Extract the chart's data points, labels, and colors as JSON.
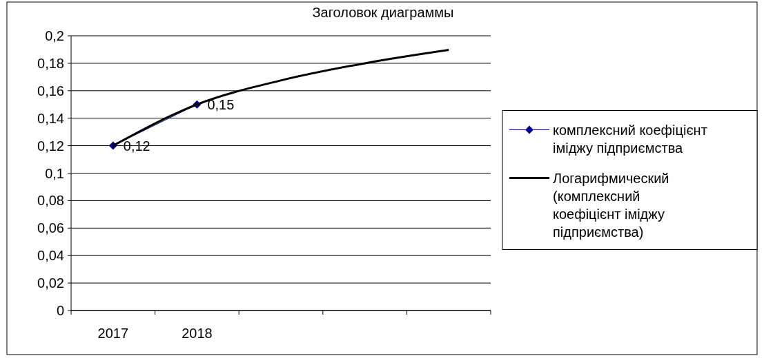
{
  "chart_data": {
    "type": "line",
    "title": "Заголовок диаграммы",
    "categories": [
      "2017",
      "2018",
      null,
      null,
      null
    ],
    "series": [
      {
        "name": "комплексний коефіцієнт іміджу підприємства",
        "color": "#000080",
        "values": [
          0.12,
          0.15,
          null,
          null,
          null
        ],
        "marker": "diamond",
        "value_labels": [
          "0,12",
          "0,15",
          null,
          null,
          null
        ]
      },
      {
        "name": "Логарифмический (комплексний коефіцієнт іміджу підприємства)",
        "color": "#000000",
        "values": [
          0.12,
          0.15,
          0.1675,
          0.18,
          0.1897
        ],
        "marker": "none"
      }
    ],
    "ylim": [
      0,
      0.2
    ],
    "yticks": [
      {
        "value": 0,
        "label": "0"
      },
      {
        "value": 0.02,
        "label": "0,02"
      },
      {
        "value": 0.04,
        "label": "0,04"
      },
      {
        "value": 0.06,
        "label": "0,06"
      },
      {
        "value": 0.08,
        "label": "0,08"
      },
      {
        "value": 0.1,
        "label": "0,1"
      },
      {
        "value": 0.12,
        "label": "0,12"
      },
      {
        "value": 0.14,
        "label": "0,14"
      },
      {
        "value": 0.16,
        "label": "0,16"
      },
      {
        "value": 0.18,
        "label": "0,18"
      },
      {
        "value": 0.2,
        "label": "0,2"
      }
    ],
    "grid": "y",
    "legend": "right"
  }
}
